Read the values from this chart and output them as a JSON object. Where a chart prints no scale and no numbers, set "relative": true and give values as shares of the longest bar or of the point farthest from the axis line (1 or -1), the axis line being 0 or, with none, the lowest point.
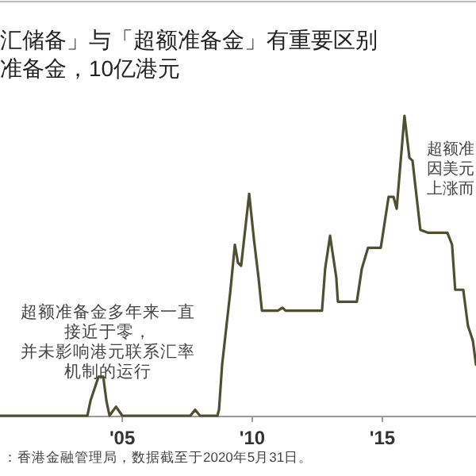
{
  "chart_data": {
    "type": "line",
    "title": "汇储备」与「超额准备金」有重要区别",
    "subtitle": "准备金，10亿港元",
    "relative": true,
    "xlim": [
      2000.3,
      2018.6
    ],
    "xticks": [
      {
        "value": 2005,
        "label": "'05"
      },
      {
        "value": 2010,
        "label": "'10"
      },
      {
        "value": 2015,
        "label": "'15"
      }
    ],
    "series": [
      {
        "color": "#4f5030",
        "x": [
          2000.3,
          2003.66,
          2003.78,
          2004.09,
          2004.27,
          2004.39,
          2004.51,
          2004.76,
          2005.0,
          2005.18,
          2007.62,
          2007.8,
          2007.99,
          2008.11,
          2008.66,
          2008.72,
          2008.84,
          2009.02,
          2009.15,
          2009.33,
          2009.45,
          2009.57,
          2009.88,
          2010.06,
          2010.24,
          2010.37,
          2010.98,
          2011.16,
          2011.28,
          2012.68,
          2012.8,
          2012.99,
          2013.23,
          2013.29,
          2014.02,
          2014.21,
          2014.45,
          2014.94,
          2015.24,
          2015.43,
          2015.55,
          2015.85,
          2016.04,
          2016.16,
          2016.46,
          2016.77,
          2017.5,
          2017.68,
          2017.8,
          2018.11,
          2018.29,
          2018.48,
          2018.6
        ],
        "values": [
          0,
          0,
          0.05,
          0.13,
          0.13,
          0.05,
          0,
          0.03,
          0,
          0,
          0,
          0.02,
          0,
          0,
          0,
          0.02,
          0.17,
          0.31,
          0.41,
          0.57,
          0.51,
          0.5,
          0.74,
          0.59,
          0.46,
          0.35,
          0.35,
          0.36,
          0.35,
          0.35,
          0.49,
          0.6,
          0.46,
          0.38,
          0.38,
          0.49,
          0.56,
          0.56,
          0.73,
          0.73,
          0.69,
          1,
          0.86,
          0.85,
          0.62,
          0.61,
          0.61,
          0.57,
          0.42,
          0.42,
          0.3,
          0.25,
          0.17
        ]
      }
    ],
    "annotations": [
      "超额准备金多年来一直接近于零，并未影响港元联系汇率机制的运行",
      "超额准因美元上涨而",
      "：香港金融管理局，数据截至于2020年5月31日。"
    ]
  }
}
